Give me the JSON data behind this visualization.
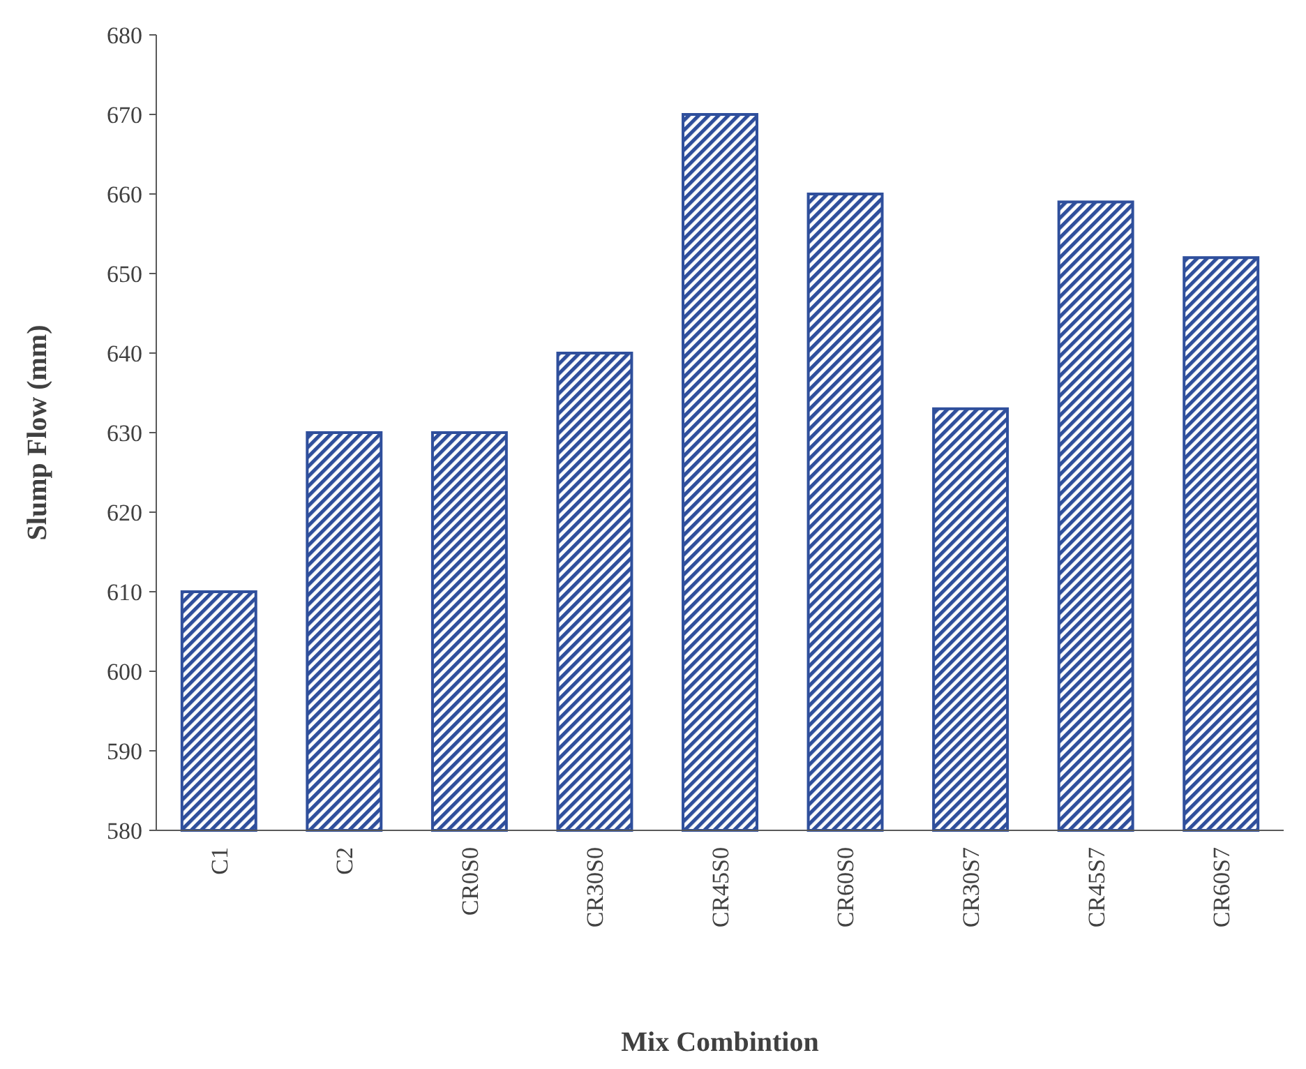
{
  "chart_data": {
    "type": "bar",
    "xlabel": "Mix Combintion",
    "ylabel": "Slump Flow (mm)",
    "categories": [
      "C1",
      "C2",
      "CR0S0",
      "CR30S0",
      "CR45S0",
      "CR60S0",
      "CR30S7",
      "CR45S7",
      "CR60S7"
    ],
    "values": [
      610,
      630,
      630,
      640,
      670,
      660,
      633,
      659,
      652
    ],
    "color": "#2f4f9c",
    "ylim": [
      580,
      680
    ],
    "yticks": [
      580,
      590,
      600,
      610,
      620,
      630,
      640,
      650,
      660,
      670,
      680
    ],
    "grid": false
  }
}
